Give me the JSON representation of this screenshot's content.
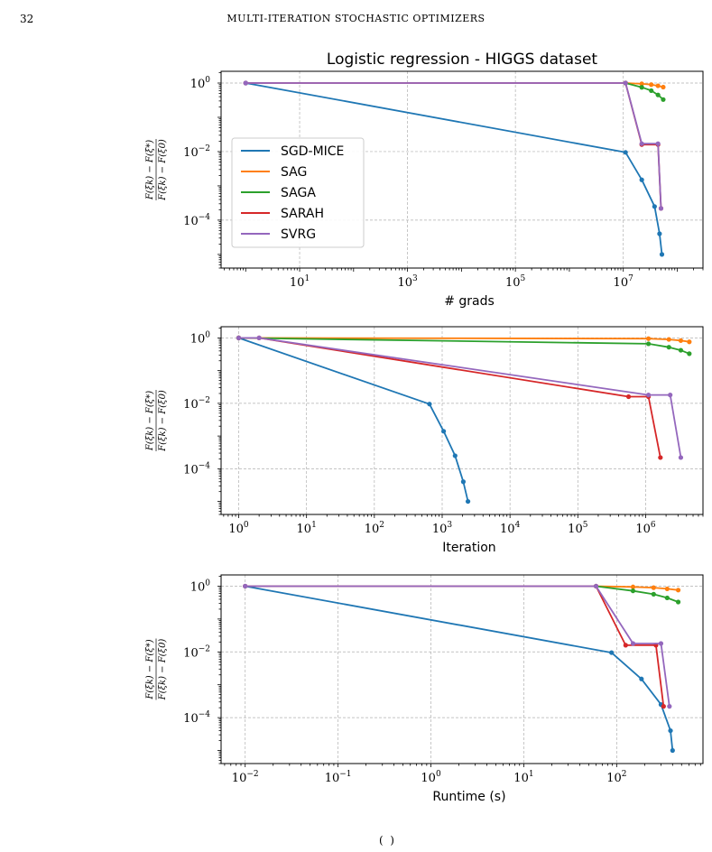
{
  "page": {
    "number": "32",
    "running_head": "MULTI-ITERATION STOCHASTIC OPTIMIZERS",
    "cut_text": "(  )"
  },
  "colors": {
    "SGD-MICE": "#1f77b4",
    "SAG": "#ff7f0e",
    "SAGA": "#2ca02c",
    "SARAH": "#d62728",
    "SVRG": "#9467bd",
    "grid": "#b0b0b0"
  },
  "chart_data": [
    {
      "type": "line",
      "title": "Logistic regression - HIGGS dataset",
      "xlabel": "# grads",
      "ylabel": "F(ξk) − F(ξ*) / F(ξk) − F(ξ0)",
      "xscale": "log",
      "yscale": "log",
      "xlim": [
        0.35,
        300000000
      ],
      "ylim": [
        4e-06,
        2.2
      ],
      "xticks": [
        {
          "v": 10,
          "base": "10",
          "exp": "1"
        },
        {
          "v": 1000,
          "base": "10",
          "exp": "3"
        },
        {
          "v": 100000,
          "base": "10",
          "exp": "5"
        },
        {
          "v": 10000000,
          "base": "10",
          "exp": "7"
        }
      ],
      "yticks": [
        {
          "v": 1,
          "base": "10",
          "exp": "0"
        },
        {
          "v": 0.01,
          "base": "10",
          "exp": "−2"
        },
        {
          "v": 0.0001,
          "base": "10",
          "exp": "−4"
        }
      ],
      "grid": true,
      "legend": "center-left",
      "series": [
        {
          "name": "SGD-MICE",
          "x": [
            1,
            11000000,
            22000000,
            38000000,
            47000000,
            52000000
          ],
          "y": [
            1,
            0.0095,
            0.0015,
            0.00025,
            4e-05,
            1e-05
          ]
        },
        {
          "name": "SAG",
          "x": [
            11000000,
            22000000,
            33000000,
            44000000,
            55000000
          ],
          "y": [
            1,
            0.95,
            0.9,
            0.83,
            0.76
          ]
        },
        {
          "name": "SAGA",
          "x": [
            11000000,
            22000000,
            33000000,
            44000000,
            55000000
          ],
          "y": [
            1,
            0.75,
            0.6,
            0.45,
            0.33
          ]
        },
        {
          "name": "SARAH",
          "x": [
            1,
            11000000,
            22000000,
            44000000,
            50000000
          ],
          "y": [
            1,
            1,
            0.016,
            0.016,
            0.00022
          ]
        },
        {
          "name": "SVRG",
          "x": [
            1,
            11000000,
            22000000,
            44000000,
            50000000
          ],
          "y": [
            1,
            1,
            0.017,
            0.017,
            0.00022
          ]
        }
      ]
    },
    {
      "type": "line",
      "xlabel": "Iteration",
      "ylabel": "F(ξk) − F(ξ*) / F(ξk) − F(ξ0)",
      "xscale": "log",
      "yscale": "log",
      "xlim": [
        0.55,
        7000000
      ],
      "ylim": [
        4e-06,
        2.2
      ],
      "xticks": [
        {
          "v": 1,
          "base": "10",
          "exp": "0"
        },
        {
          "v": 10,
          "base": "10",
          "exp": "1"
        },
        {
          "v": 100,
          "base": "10",
          "exp": "2"
        },
        {
          "v": 1000,
          "base": "10",
          "exp": "3"
        },
        {
          "v": 10000,
          "base": "10",
          "exp": "4"
        },
        {
          "v": 100000,
          "base": "10",
          "exp": "5"
        },
        {
          "v": 1000000,
          "base": "10",
          "exp": "6"
        }
      ],
      "yticks": [
        {
          "v": 1,
          "base": "10",
          "exp": "0"
        },
        {
          "v": 0.01,
          "base": "10",
          "exp": "−2"
        },
        {
          "v": 0.0001,
          "base": "10",
          "exp": "−4"
        }
      ],
      "grid": true,
      "series": [
        {
          "name": "SGD-MICE",
          "x": [
            1,
            650,
            1050,
            1550,
            2050,
            2400
          ],
          "y": [
            1,
            0.0095,
            0.0014,
            0.00025,
            4e-05,
            1e-05
          ]
        },
        {
          "name": "SAG",
          "x": [
            1,
            1100000,
            2200000,
            3300000,
            4400000
          ],
          "y": [
            1,
            0.95,
            0.9,
            0.83,
            0.76
          ]
        },
        {
          "name": "SAGA",
          "x": [
            1,
            1100000,
            2200000,
            3300000,
            4400000
          ],
          "y": [
            1,
            0.66,
            0.52,
            0.42,
            0.33
          ]
        },
        {
          "name": "SARAH",
          "x": [
            1,
            2,
            560000,
            1100000,
            1650000
          ],
          "y": [
            1,
            1,
            0.016,
            0.016,
            0.00022
          ]
        },
        {
          "name": "SVRG",
          "x": [
            1,
            2,
            1100000,
            2300000,
            3300000
          ],
          "y": [
            1,
            1,
            0.018,
            0.018,
            0.00022
          ]
        }
      ]
    },
    {
      "type": "line",
      "xlabel": "Runtime (s)",
      "ylabel": "F(ξk) − F(ξ*) / F(ξk) − F(ξ0)",
      "xscale": "log",
      "yscale": "log",
      "xlim": [
        0.0055,
        850
      ],
      "ylim": [
        4e-06,
        2.2
      ],
      "xticks": [
        {
          "v": 0.01,
          "base": "10",
          "exp": "−2"
        },
        {
          "v": 0.1,
          "base": "10",
          "exp": "−1"
        },
        {
          "v": 1,
          "base": "10",
          "exp": "0"
        },
        {
          "v": 10,
          "base": "10",
          "exp": "1"
        },
        {
          "v": 100,
          "base": "10",
          "exp": "2"
        }
      ],
      "yticks": [
        {
          "v": 1,
          "base": "10",
          "exp": "0"
        },
        {
          "v": 0.01,
          "base": "10",
          "exp": "−2"
        },
        {
          "v": 0.0001,
          "base": "10",
          "exp": "−4"
        }
      ],
      "grid": true,
      "series": [
        {
          "name": "SGD-MICE",
          "x": [
            0.01,
            88,
            185,
            300,
            380,
            400
          ],
          "y": [
            1,
            0.0095,
            0.0015,
            0.00025,
            4e-05,
            1e-05
          ]
        },
        {
          "name": "SAG",
          "x": [
            60,
            150,
            250,
            350,
            460
          ],
          "y": [
            1,
            0.95,
            0.9,
            0.83,
            0.76
          ]
        },
        {
          "name": "SAGA",
          "x": [
            60,
            150,
            250,
            350,
            460
          ],
          "y": [
            1,
            0.72,
            0.57,
            0.44,
            0.33
          ]
        },
        {
          "name": "SARAH",
          "x": [
            0.01,
            60,
            125,
            265,
            320
          ],
          "y": [
            1,
            1,
            0.016,
            0.016,
            0.00022
          ]
        },
        {
          "name": "SVRG",
          "x": [
            0.01,
            60,
            150,
            300,
            370
          ],
          "y": [
            1,
            1,
            0.018,
            0.018,
            0.00022
          ]
        }
      ]
    }
  ]
}
